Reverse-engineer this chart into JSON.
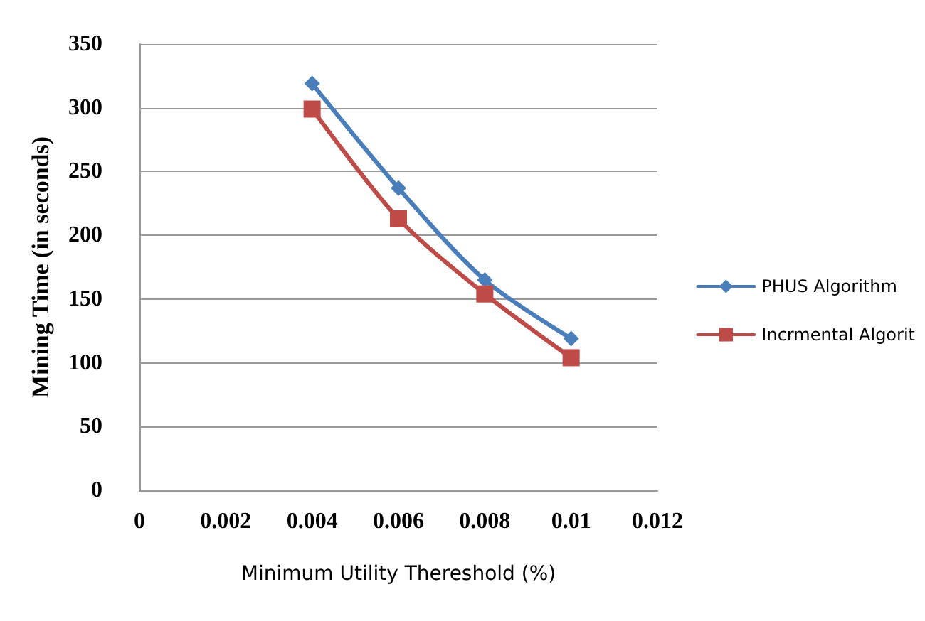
{
  "chart_data": {
    "type": "line",
    "xlabel": "Minimum Utility Thereshold (%)",
    "ylabel": "Mining Time (in seconds)",
    "x": [
      0.004,
      0.006,
      0.008,
      0.01
    ],
    "series": [
      {
        "name": "PHUS Algorithm",
        "color": "#4a7ebb",
        "values": [
          319,
          237,
          165,
          119
        ],
        "marker": "diamond"
      },
      {
        "name": "Incrmental Algorit",
        "color": "#be4b48",
        "values": [
          299,
          213,
          154,
          104
        ],
        "marker": "square"
      }
    ],
    "xlim": [
      0,
      0.012
    ],
    "xticks": [
      0,
      0.002,
      0.004,
      0.006,
      0.008,
      0.01,
      0.012
    ],
    "ylim": [
      0,
      350
    ],
    "yticks": [
      0,
      50,
      100,
      150,
      200,
      250,
      300,
      350
    ],
    "grid": "y",
    "legend": "right",
    "line_style": "solid"
  }
}
